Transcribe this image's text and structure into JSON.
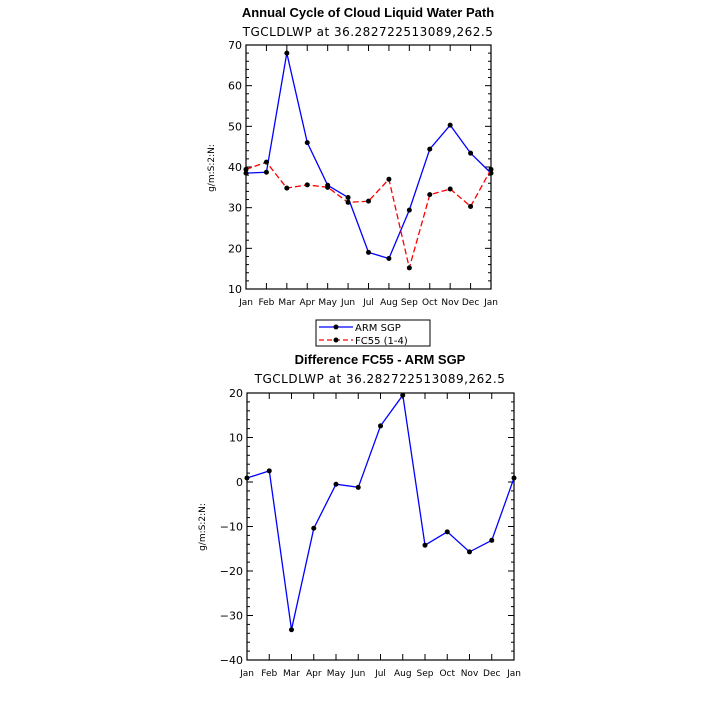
{
  "chart_data": [
    {
      "type": "line",
      "title": "Annual Cycle of Cloud Liquid Water Path",
      "subtitle": "TGCLDLWP at 36.282722513089,262.5",
      "ylabel": "g/m:S:2:N:",
      "xlabel": "",
      "categories": [
        "Jan",
        "Feb",
        "Mar",
        "Apr",
        "May",
        "Jun",
        "Jul",
        "Aug",
        "Sep",
        "Oct",
        "Nov",
        "Dec",
        "Jan"
      ],
      "yticks": [
        "10",
        "20",
        "30",
        "40",
        "50",
        "60",
        "70"
      ],
      "ylim": [
        10,
        70
      ],
      "series": [
        {
          "name": "ARM SGP",
          "color": "#0000ff",
          "dash": "solid",
          "values": [
            38.5,
            38.7,
            68.0,
            46.0,
            35.5,
            32.5,
            19.0,
            17.5,
            29.4,
            44.4,
            50.3,
            43.4,
            38.5
          ]
        },
        {
          "name": "FC55 (1-4)",
          "color": "#ff0000",
          "dash": "dashed",
          "values": [
            39.4,
            41.2,
            34.8,
            35.6,
            35.0,
            31.3,
            31.6,
            37.0,
            15.2,
            33.2,
            34.6,
            30.3,
            39.4
          ]
        }
      ],
      "legend": "bottom"
    },
    {
      "type": "line",
      "title": "Difference FC55 - ARM SGP",
      "subtitle": "TGCLDLWP at 36.282722513089,262.5",
      "ylabel": "g/m:S:2:N:",
      "xlabel": "",
      "categories": [
        "Jan",
        "Feb",
        "Mar",
        "Apr",
        "May",
        "Jun",
        "Jul",
        "Aug",
        "Sep",
        "Oct",
        "Nov",
        "Dec",
        "Jan"
      ],
      "yticks": [
        "−40",
        "−30",
        "−20",
        "−10",
        "0",
        "10",
        "20"
      ],
      "ylim": [
        -40,
        20
      ],
      "series": [
        {
          "color": "#0000ff",
          "dash": "solid",
          "values": [
            0.9,
            2.5,
            -33.2,
            -10.4,
            -0.5,
            -1.2,
            12.6,
            19.5,
            -14.2,
            -11.2,
            -15.7,
            -13.1,
            0.9
          ]
        }
      ]
    }
  ]
}
